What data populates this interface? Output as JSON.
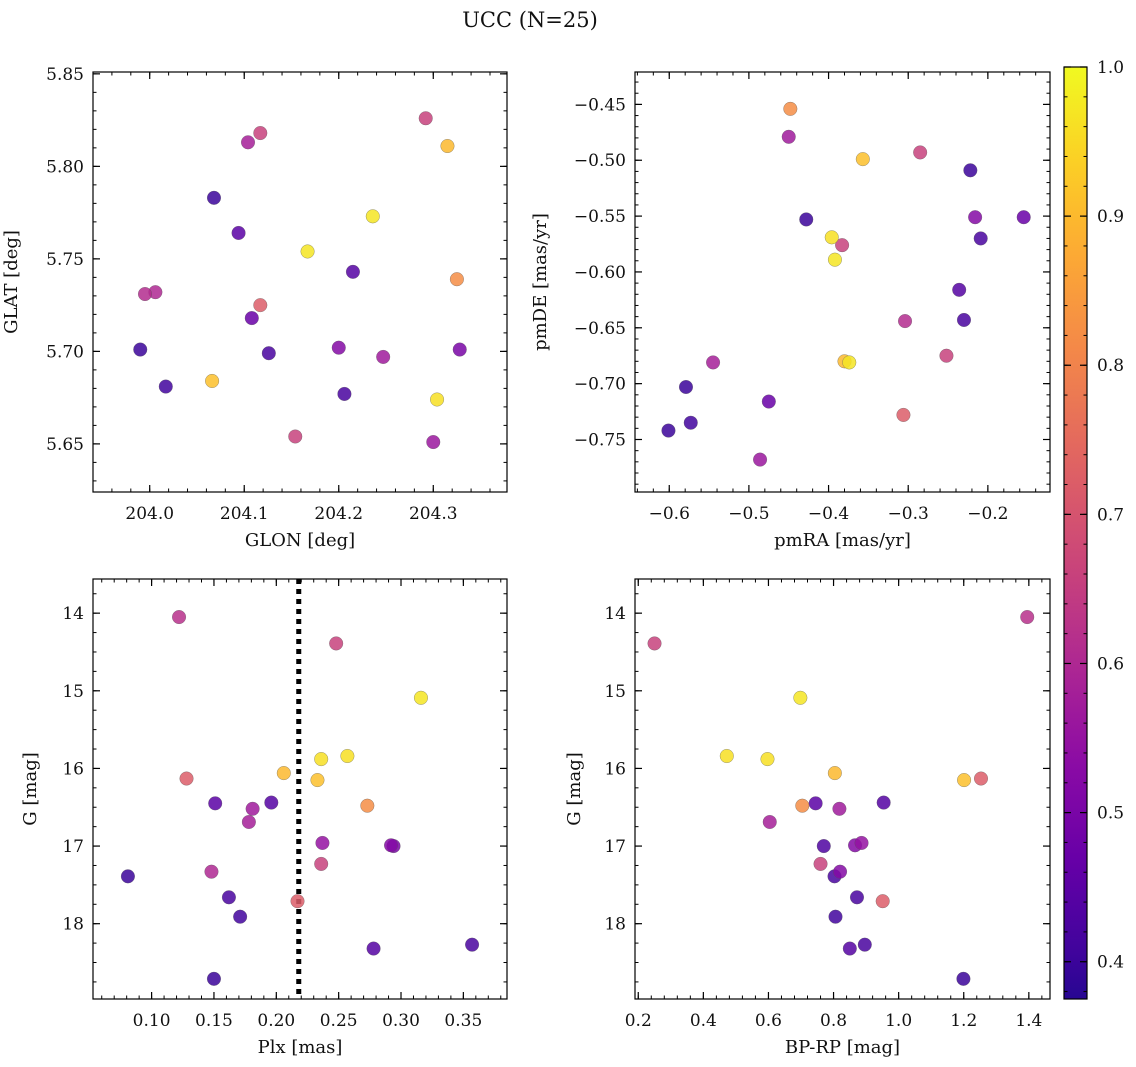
{
  "figure": {
    "title": "UCC (N=25)"
  },
  "colorbar": {
    "colormap": "plasma",
    "range": [
      0.375,
      1.0
    ],
    "ticks": [
      0.4,
      0.5,
      0.6,
      0.7,
      0.8,
      0.9,
      1.0
    ],
    "tick_labels": [
      "0.4",
      "0.5",
      "0.6",
      "0.7",
      "0.8",
      "0.9",
      "1.0"
    ]
  },
  "chart_data": [
    {
      "type": "scatter",
      "xlabel": "GLON [deg]",
      "ylabel": "GLAT [deg]",
      "xlim": [
        203.94,
        204.378
      ],
      "ylim": [
        5.624,
        5.851
      ],
      "x_inverted": false,
      "y_inverted": false,
      "xticks": [
        204.0,
        204.1,
        204.2,
        204.3
      ],
      "xtick_labels": [
        "204.0",
        "204.1",
        "204.2",
        "204.3"
      ],
      "yticks": [
        5.65,
        5.7,
        5.75,
        5.8,
        5.85
      ],
      "ytick_labels": [
        "5.65",
        "5.70",
        "5.75",
        "5.80",
        "5.85"
      ],
      "points": [
        {
          "x": 204.104,
          "y": 5.813,
          "c": 0.58
        },
        {
          "x": 204.117,
          "y": 5.818,
          "c": 0.66
        },
        {
          "x": 204.292,
          "y": 5.826,
          "c": 0.66
        },
        {
          "x": 204.315,
          "y": 5.811,
          "c": 0.9
        },
        {
          "x": 204.068,
          "y": 5.783,
          "c": 0.4
        },
        {
          "x": 204.094,
          "y": 5.764,
          "c": 0.45
        },
        {
          "x": 204.236,
          "y": 5.773,
          "c": 0.97
        },
        {
          "x": 204.167,
          "y": 5.754,
          "c": 0.97
        },
        {
          "x": 204.215,
          "y": 5.743,
          "c": 0.44
        },
        {
          "x": 204.325,
          "y": 5.739,
          "c": 0.82
        },
        {
          "x": 203.995,
          "y": 5.731,
          "c": 0.61
        },
        {
          "x": 204.006,
          "y": 5.732,
          "c": 0.6
        },
        {
          "x": 204.117,
          "y": 5.725,
          "c": 0.72
        },
        {
          "x": 204.108,
          "y": 5.718,
          "c": 0.47
        },
        {
          "x": 203.99,
          "y": 5.701,
          "c": 0.4
        },
        {
          "x": 204.126,
          "y": 5.699,
          "c": 0.42
        },
        {
          "x": 204.2,
          "y": 5.702,
          "c": 0.52
        },
        {
          "x": 204.247,
          "y": 5.697,
          "c": 0.57
        },
        {
          "x": 204.328,
          "y": 5.701,
          "c": 0.5
        },
        {
          "x": 204.017,
          "y": 5.681,
          "c": 0.41
        },
        {
          "x": 204.066,
          "y": 5.684,
          "c": 0.91
        },
        {
          "x": 204.206,
          "y": 5.677,
          "c": 0.42
        },
        {
          "x": 204.304,
          "y": 5.674,
          "c": 0.96
        },
        {
          "x": 204.154,
          "y": 5.654,
          "c": 0.66
        },
        {
          "x": 204.3,
          "y": 5.651,
          "c": 0.56
        }
      ]
    },
    {
      "type": "scatter",
      "xlabel": "pmRA [mas/yr]",
      "ylabel": "pmDE [mas/yr]",
      "xlim": [
        -0.643,
        -0.122
      ],
      "ylim": [
        -0.797,
        -0.421
      ],
      "x_inverted": false,
      "y_inverted": false,
      "xticks": [
        -0.6,
        -0.5,
        -0.4,
        -0.3,
        -0.2
      ],
      "xtick_labels": [
        "−0.6",
        "−0.5",
        "−0.4",
        "−0.3",
        "−0.2"
      ],
      "yticks": [
        -0.75,
        -0.7,
        -0.65,
        -0.6,
        -0.55,
        -0.5,
        -0.45
      ],
      "ytick_labels": [
        "−0.75",
        "−0.70",
        "−0.65",
        "−0.60",
        "−0.55",
        "−0.50",
        "−0.45"
      ],
      "points": [
        {
          "x": -0.448,
          "y": -0.454,
          "c": 0.82
        },
        {
          "x": -0.45,
          "y": -0.479,
          "c": 0.57
        },
        {
          "x": -0.357,
          "y": -0.499,
          "c": 0.91
        },
        {
          "x": -0.285,
          "y": -0.493,
          "c": 0.66
        },
        {
          "x": -0.222,
          "y": -0.509,
          "c": 0.4
        },
        {
          "x": -0.428,
          "y": -0.553,
          "c": 0.4
        },
        {
          "x": -0.396,
          "y": -0.569,
          "c": 0.96
        },
        {
          "x": -0.383,
          "y": -0.576,
          "c": 0.66
        },
        {
          "x": -0.392,
          "y": -0.589,
          "c": 0.97
        },
        {
          "x": -0.216,
          "y": -0.551,
          "c": 0.52
        },
        {
          "x": -0.155,
          "y": -0.551,
          "c": 0.47
        },
        {
          "x": -0.209,
          "y": -0.57,
          "c": 0.42
        },
        {
          "x": -0.236,
          "y": -0.616,
          "c": 0.44
        },
        {
          "x": -0.304,
          "y": -0.644,
          "c": 0.61
        },
        {
          "x": -0.23,
          "y": -0.643,
          "c": 0.42
        },
        {
          "x": -0.252,
          "y": -0.675,
          "c": 0.66
        },
        {
          "x": -0.545,
          "y": -0.681,
          "c": 0.58
        },
        {
          "x": -0.579,
          "y": -0.703,
          "c": 0.4
        },
        {
          "x": -0.38,
          "y": -0.68,
          "c": 0.9
        },
        {
          "x": -0.374,
          "y": -0.681,
          "c": 0.97
        },
        {
          "x": -0.475,
          "y": -0.716,
          "c": 0.47
        },
        {
          "x": -0.573,
          "y": -0.735,
          "c": 0.41
        },
        {
          "x": -0.601,
          "y": -0.742,
          "c": 0.4
        },
        {
          "x": -0.306,
          "y": -0.728,
          "c": 0.72
        },
        {
          "x": -0.486,
          "y": -0.768,
          "c": 0.56
        }
      ]
    },
    {
      "type": "scatter",
      "xlabel": "Plx [mas]",
      "ylabel": "G [mag]",
      "xlim": [
        0.053,
        0.385
      ],
      "ylim": [
        18.97,
        13.56
      ],
      "x_inverted": false,
      "y_inverted": true,
      "xticks": [
        0.1,
        0.15,
        0.2,
        0.25,
        0.3,
        0.35
      ],
      "xtick_labels": [
        "0.10",
        "0.15",
        "0.20",
        "0.25",
        "0.30",
        "0.35"
      ],
      "yticks": [
        14,
        15,
        16,
        17,
        18
      ],
      "ytick_labels": [
        "14",
        "15",
        "16",
        "17",
        "18"
      ],
      "vline": {
        "x": 0.218,
        "style": "dotted"
      },
      "points": [
        {
          "x": 0.122,
          "y": 14.05,
          "c": 0.62
        },
        {
          "x": 0.248,
          "y": 14.39,
          "c": 0.66
        },
        {
          "x": 0.316,
          "y": 15.09,
          "c": 0.97
        },
        {
          "x": 0.257,
          "y": 15.84,
          "c": 0.96
        },
        {
          "x": 0.236,
          "y": 15.88,
          "c": 0.96
        },
        {
          "x": 0.206,
          "y": 16.06,
          "c": 0.9
        },
        {
          "x": 0.233,
          "y": 16.15,
          "c": 0.91
        },
        {
          "x": 0.128,
          "y": 16.13,
          "c": 0.72
        },
        {
          "x": 0.273,
          "y": 16.48,
          "c": 0.82
        },
        {
          "x": 0.151,
          "y": 16.45,
          "c": 0.45
        },
        {
          "x": 0.196,
          "y": 16.44,
          "c": 0.44
        },
        {
          "x": 0.181,
          "y": 16.52,
          "c": 0.57
        },
        {
          "x": 0.178,
          "y": 16.69,
          "c": 0.58
        },
        {
          "x": 0.237,
          "y": 16.96,
          "c": 0.55
        },
        {
          "x": 0.292,
          "y": 16.99,
          "c": 0.52
        },
        {
          "x": 0.294,
          "y": 17.0,
          "c": 0.5
        },
        {
          "x": 0.236,
          "y": 17.23,
          "c": 0.66
        },
        {
          "x": 0.148,
          "y": 17.33,
          "c": 0.6
        },
        {
          "x": 0.081,
          "y": 17.39,
          "c": 0.4
        },
        {
          "x": 0.162,
          "y": 17.66,
          "c": 0.42
        },
        {
          "x": 0.217,
          "y": 17.71,
          "c": 0.72
        },
        {
          "x": 0.171,
          "y": 17.91,
          "c": 0.41
        },
        {
          "x": 0.357,
          "y": 18.27,
          "c": 0.42
        },
        {
          "x": 0.278,
          "y": 18.32,
          "c": 0.44
        },
        {
          "x": 0.15,
          "y": 18.71,
          "c": 0.4
        }
      ]
    },
    {
      "type": "scatter",
      "xlabel": "BP-RP [mag]",
      "ylabel": "G [mag]",
      "xlim": [
        0.19,
        1.465
      ],
      "ylim": [
        18.97,
        13.56
      ],
      "x_inverted": false,
      "y_inverted": true,
      "xticks": [
        0.2,
        0.4,
        0.6,
        0.8,
        1.0,
        1.2,
        1.4
      ],
      "xtick_labels": [
        "0.2",
        "0.4",
        "0.6",
        "0.8",
        "1.0",
        "1.2",
        "1.4"
      ],
      "yticks": [
        14,
        15,
        16,
        17,
        18
      ],
      "ytick_labels": [
        "14",
        "15",
        "16",
        "17",
        "18"
      ],
      "points": [
        {
          "x": 1.395,
          "y": 14.05,
          "c": 0.62
        },
        {
          "x": 0.25,
          "y": 14.39,
          "c": 0.66
        },
        {
          "x": 0.698,
          "y": 15.09,
          "c": 0.97
        },
        {
          "x": 0.472,
          "y": 15.84,
          "c": 0.96
        },
        {
          "x": 0.597,
          "y": 15.88,
          "c": 0.96
        },
        {
          "x": 0.804,
          "y": 16.06,
          "c": 0.9
        },
        {
          "x": 1.201,
          "y": 16.15,
          "c": 0.91
        },
        {
          "x": 1.253,
          "y": 16.13,
          "c": 0.72
        },
        {
          "x": 0.704,
          "y": 16.48,
          "c": 0.82
        },
        {
          "x": 0.745,
          "y": 16.45,
          "c": 0.45
        },
        {
          "x": 0.954,
          "y": 16.44,
          "c": 0.44
        },
        {
          "x": 0.818,
          "y": 16.52,
          "c": 0.57
        },
        {
          "x": 0.604,
          "y": 16.69,
          "c": 0.58
        },
        {
          "x": 0.886,
          "y": 16.96,
          "c": 0.55
        },
        {
          "x": 0.866,
          "y": 16.99,
          "c": 0.52
        },
        {
          "x": 0.77,
          "y": 17.0,
          "c": 0.43
        },
        {
          "x": 0.76,
          "y": 17.23,
          "c": 0.66
        },
        {
          "x": 0.82,
          "y": 17.33,
          "c": 0.52
        },
        {
          "x": 0.803,
          "y": 17.39,
          "c": 0.42
        },
        {
          "x": 0.872,
          "y": 17.66,
          "c": 0.42
        },
        {
          "x": 0.951,
          "y": 17.71,
          "c": 0.72
        },
        {
          "x": 0.806,
          "y": 17.91,
          "c": 0.41
        },
        {
          "x": 0.896,
          "y": 18.27,
          "c": 0.42
        },
        {
          "x": 0.85,
          "y": 18.32,
          "c": 0.44
        },
        {
          "x": 1.199,
          "y": 18.71,
          "c": 0.4
        }
      ]
    }
  ]
}
